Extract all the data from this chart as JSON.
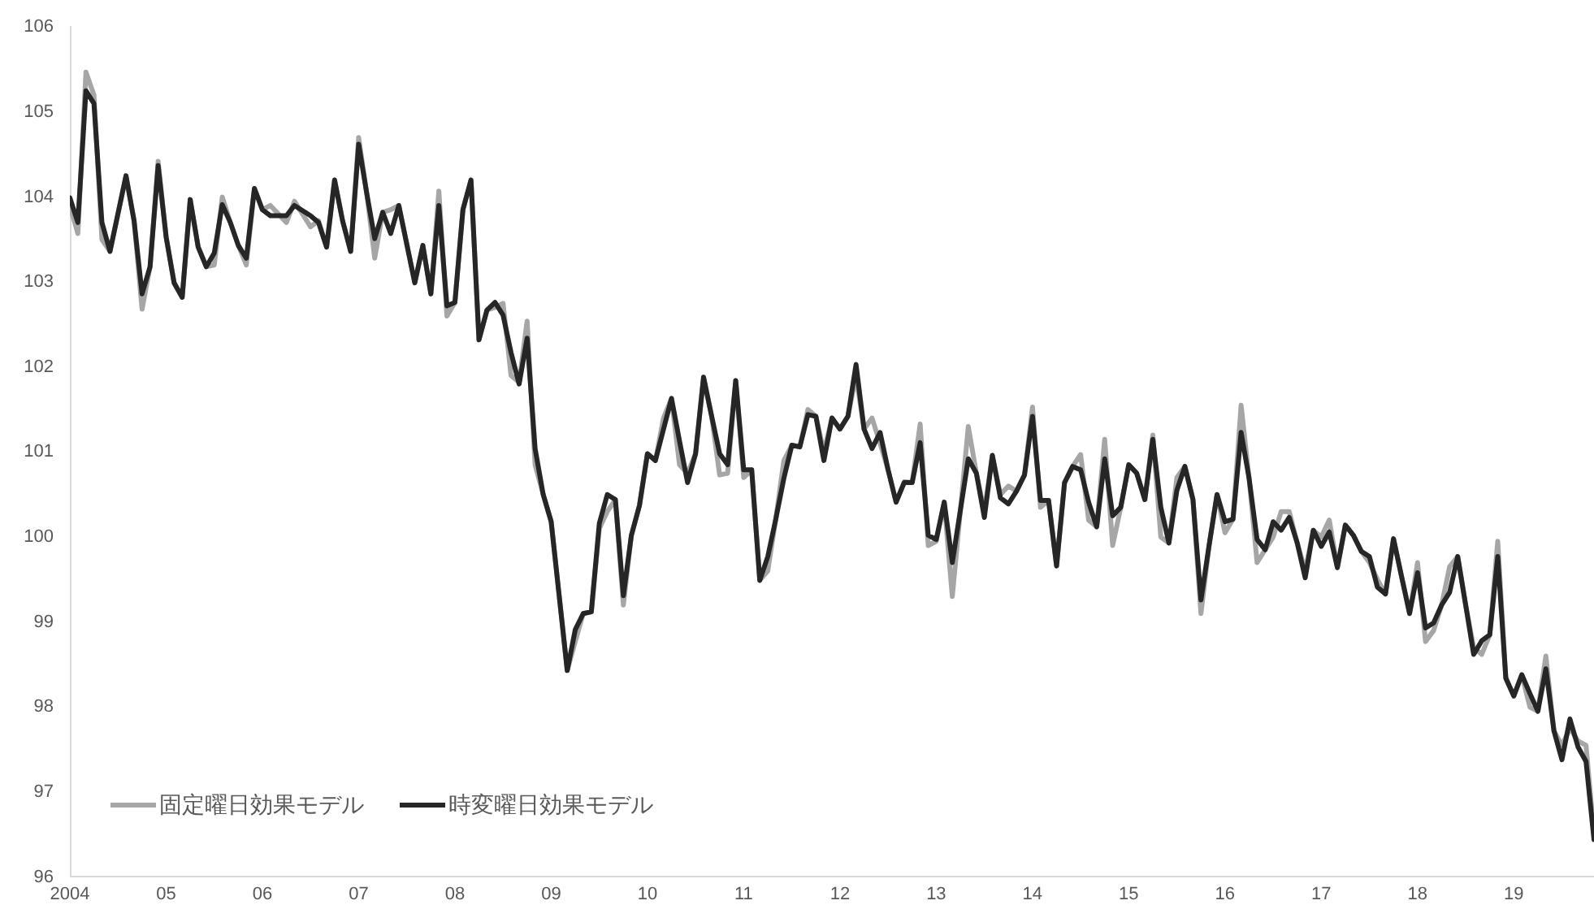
{
  "chart_data": {
    "type": "line",
    "x": [
      2004,
      2004.083,
      2004.167,
      2004.25,
      2004.333,
      2004.417,
      2004.583,
      2004.667,
      2004.75,
      2004.833,
      2004.917,
      2005,
      2005.083,
      2005.167,
      2005.25,
      2005.333,
      2005.417,
      2005.5,
      2005.583,
      2005.667,
      2005.75,
      2005.833,
      2005.917,
      2006,
      2006.083,
      2006.25,
      2006.333,
      2006.5,
      2006.583,
      2006.667,
      2006.75,
      2006.833,
      2006.917,
      2007,
      2007.083,
      2007.167,
      2007.25,
      2007.333,
      2007.417,
      2007.583,
      2007.667,
      2007.75,
      2007.833,
      2007.917,
      2008,
      2008.083,
      2008.167,
      2008.25,
      2008.333,
      2008.417,
      2008.5,
      2008.583,
      2008.667,
      2008.75,
      2008.833,
      2008.917,
      2009,
      2009.083,
      2009.167,
      2009.25,
      2009.333,
      2009.417,
      2009.5,
      2009.583,
      2009.667,
      2009.75,
      2009.833,
      2009.917,
      2010,
      2010.083,
      2010.167,
      2010.25,
      2010.333,
      2010.417,
      2010.5,
      2010.583,
      2010.667,
      2010.75,
      2010.833,
      2010.917,
      2011,
      2011.083,
      2011.167,
      2011.25,
      2011.333,
      2011.417,
      2011.5,
      2011.583,
      2011.667,
      2011.75,
      2011.833,
      2011.917,
      2012,
      2012.083,
      2012.167,
      2012.25,
      2012.333,
      2012.417,
      2012.5,
      2012.583,
      2012.667,
      2012.75,
      2012.833,
      2012.917,
      2013,
      2013.083,
      2013.167,
      2013.333,
      2013.417,
      2013.5,
      2013.583,
      2013.667,
      2013.75,
      2013.833,
      2013.917,
      2014,
      2014.083,
      2014.167,
      2014.25,
      2014.333,
      2014.417,
      2014.5,
      2014.583,
      2014.667,
      2014.75,
      2014.833,
      2014.917,
      2015,
      2015.083,
      2015.167,
      2015.25,
      2015.333,
      2015.417,
      2015.5,
      2015.583,
      2015.667,
      2015.75,
      2015.833,
      2015.917,
      2016,
      2016.083,
      2016.167,
      2016.25,
      2016.333,
      2016.417,
      2016.5,
      2016.583,
      2016.667,
      2016.75,
      2016.833,
      2016.917,
      2017,
      2017.083,
      2017.167,
      2017.25,
      2017.333,
      2017.417,
      2017.5,
      2017.583,
      2017.667,
      2017.75,
      2017.833,
      2017.917,
      2018,
      2018.083,
      2018.167,
      2018.25,
      2018.333,
      2018.417,
      2018.5,
      2018.583,
      2018.667,
      2018.75,
      2018.833,
      2018.917,
      2019,
      2019.083,
      2019.167,
      2019.25,
      2019.333,
      2019.417,
      2019.5,
      2019.583,
      2019.667,
      2019.75,
      2019.833
    ],
    "series": [
      {
        "name": "固定曜日効果モデル",
        "color": "#a6a6a6",
        "values": [
          103.9,
          103.57,
          105.47,
          105.2,
          103.5,
          103.36,
          104.25,
          103.72,
          102.68,
          103.18,
          104.42,
          103.53,
          102.99,
          102.82,
          103.97,
          103.41,
          103.18,
          103.2,
          104.0,
          103.7,
          103.43,
          103.2,
          104.1,
          103.85,
          103.9,
          103.7,
          103.95,
          103.65,
          103.72,
          103.41,
          104.2,
          103.72,
          103.36,
          104.7,
          104.05,
          103.28,
          103.82,
          103.85,
          103.9,
          102.99,
          103.43,
          102.86,
          104.07,
          102.6,
          102.76,
          103.85,
          104.2,
          102.32,
          102.67,
          102.7,
          102.75,
          101.9,
          101.82,
          102.54,
          100.85,
          100.5,
          100.18,
          99.31,
          98.43,
          98.77,
          99.1,
          99.12,
          100.1,
          100.3,
          100.44,
          99.2,
          100.02,
          100.37,
          100.98,
          100.9,
          101.4,
          101.63,
          100.85,
          100.75,
          100.98,
          101.88,
          101.42,
          100.73,
          100.75,
          101.84,
          100.7,
          100.79,
          99.49,
          99.6,
          100.21,
          100.9,
          101.08,
          101.06,
          101.5,
          101.42,
          101.0,
          101.4,
          101.27,
          101.42,
          101.9,
          101.27,
          101.4,
          101.1,
          100.79,
          100.41,
          100.65,
          100.64,
          101.33,
          99.9,
          99.95,
          100.41,
          99.3,
          101.3,
          100.75,
          100.3,
          100.96,
          100.5,
          100.6,
          100.54,
          100.73,
          101.53,
          100.35,
          100.43,
          99.66,
          100.64,
          100.83,
          100.97,
          100.2,
          100.12,
          101.15,
          99.9,
          100.35,
          100.85,
          100.75,
          100.44,
          101.2,
          100.0,
          99.93,
          100.7,
          100.83,
          100.44,
          99.1,
          99.89,
          100.5,
          100.05,
          100.21,
          101.55,
          100.69,
          99.7,
          99.85,
          100.0,
          100.3,
          100.3,
          99.93,
          99.6,
          100.08,
          100.0,
          100.2,
          99.64,
          100.14,
          100.02,
          99.83,
          99.7,
          99.5,
          99.33,
          99.98,
          99.54,
          99.1,
          99.7,
          98.77,
          98.9,
          99.2,
          99.65,
          99.77,
          99.2,
          98.7,
          98.62,
          98.85,
          99.95,
          98.34,
          98.13,
          98.38,
          98.0,
          97.95,
          98.6,
          97.72,
          97.55,
          97.75,
          97.6,
          97.55,
          96.5
        ]
      },
      {
        "name": "時変曜日効果モデル",
        "color": "#262626",
        "values": [
          103.99,
          103.7,
          105.25,
          105.1,
          103.7,
          103.36,
          104.25,
          103.72,
          102.86,
          103.18,
          104.37,
          103.53,
          102.99,
          102.82,
          103.97,
          103.41,
          103.18,
          103.34,
          103.91,
          103.7,
          103.43,
          103.28,
          104.1,
          103.85,
          103.78,
          103.78,
          103.9,
          103.78,
          103.7,
          103.41,
          104.2,
          103.72,
          103.36,
          104.62,
          104.05,
          103.51,
          103.82,
          103.57,
          103.9,
          102.99,
          103.43,
          102.86,
          103.9,
          102.72,
          102.76,
          103.85,
          104.2,
          102.32,
          102.67,
          102.76,
          102.61,
          102.17,
          101.8,
          102.34,
          101.04,
          100.5,
          100.18,
          99.31,
          98.43,
          98.91,
          99.1,
          99.12,
          100.16,
          100.5,
          100.44,
          99.31,
          100.02,
          100.37,
          100.98,
          100.9,
          101.27,
          101.63,
          101.13,
          100.64,
          100.98,
          101.88,
          101.42,
          100.98,
          100.85,
          101.84,
          100.79,
          100.79,
          99.49,
          99.77,
          100.21,
          100.69,
          101.08,
          101.06,
          101.44,
          101.42,
          100.9,
          101.4,
          101.27,
          101.42,
          102.03,
          101.27,
          101.04,
          101.23,
          100.79,
          100.41,
          100.64,
          100.64,
          101.11,
          100.02,
          99.97,
          100.41,
          99.7,
          100.92,
          100.75,
          100.23,
          100.96,
          100.46,
          100.39,
          100.54,
          100.73,
          101.42,
          100.43,
          100.43,
          99.66,
          100.64,
          100.83,
          100.79,
          100.41,
          100.12,
          100.92,
          100.25,
          100.35,
          100.85,
          100.75,
          100.44,
          101.15,
          100.35,
          99.93,
          100.55,
          100.83,
          100.44,
          99.26,
          99.89,
          100.5,
          100.18,
          100.21,
          101.23,
          100.69,
          99.97,
          99.85,
          100.18,
          100.08,
          100.23,
          99.93,
          99.52,
          100.08,
          99.89,
          100.06,
          99.64,
          100.14,
          100.02,
          99.83,
          99.77,
          99.41,
          99.33,
          99.98,
          99.54,
          99.1,
          99.58,
          98.93,
          98.99,
          99.2,
          99.35,
          99.77,
          99.2,
          98.62,
          98.78,
          98.85,
          99.77,
          98.34,
          98.13,
          98.38,
          98.16,
          97.95,
          98.45,
          97.72,
          97.38,
          97.86,
          97.53,
          97.36,
          96.44
        ]
      }
    ],
    "xlim": [
      2004,
      2019.833
    ],
    "xticks": [
      {
        "value": 2004,
        "label": "2004"
      },
      {
        "value": 2005,
        "label": "05"
      },
      {
        "value": 2006,
        "label": "06"
      },
      {
        "value": 2007,
        "label": "07"
      },
      {
        "value": 2008,
        "label": "08"
      },
      {
        "value": 2009,
        "label": "09"
      },
      {
        "value": 2010,
        "label": "10"
      },
      {
        "value": 2011,
        "label": "11"
      },
      {
        "value": 2012,
        "label": "12"
      },
      {
        "value": 2013,
        "label": "13"
      },
      {
        "value": 2014,
        "label": "14"
      },
      {
        "value": 2015,
        "label": "15"
      },
      {
        "value": 2016,
        "label": "16"
      },
      {
        "value": 2017,
        "label": "17"
      },
      {
        "value": 2018,
        "label": "18"
      },
      {
        "value": 2019,
        "label": "19"
      }
    ],
    "ylim": [
      96,
      106
    ],
    "yticks": [
      96,
      97,
      98,
      99,
      100,
      101,
      102,
      103,
      104,
      105,
      106
    ],
    "grid": false,
    "legend": "bottom left",
    "marker": "none",
    "line_style": "solid"
  }
}
